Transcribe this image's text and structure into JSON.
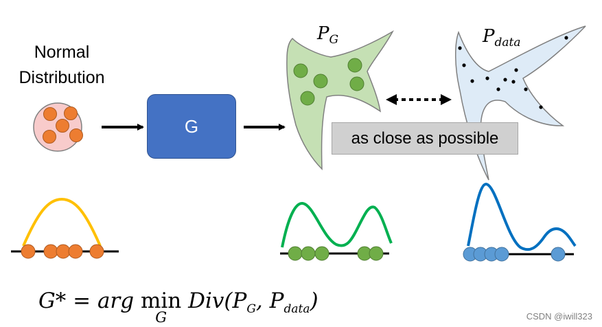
{
  "input": {
    "label_line1": "Normal",
    "label_line2": "Distribution"
  },
  "generator": {
    "label": "G"
  },
  "pg": {
    "label_main": "P",
    "label_sub": "G"
  },
  "pdata": {
    "label_main": "P",
    "label_sub": "data"
  },
  "comparison": {
    "label": "as close as possible"
  },
  "formula": {
    "lhs": "G* = arg ",
    "min_word": "min",
    "min_sub": "G",
    "rhs_pre": " Div(P",
    "rhs_sub1": "G",
    "rhs_mid": ", P",
    "rhs_sub2": "data",
    "rhs_end": ")"
  },
  "watermark": "CSDN @iwill323",
  "colors": {
    "orange": "#ED7D31",
    "yellow": "#FFC000",
    "green": "#70AD47",
    "green_curve": "#00B050",
    "blue": "#5B9BD5",
    "blue_curve": "#0070C0",
    "g_box": "#4472C4",
    "pg_fill": "#C5E0B4",
    "pdata_fill": "#DEEBF7",
    "pink": "#F8CBCB"
  }
}
